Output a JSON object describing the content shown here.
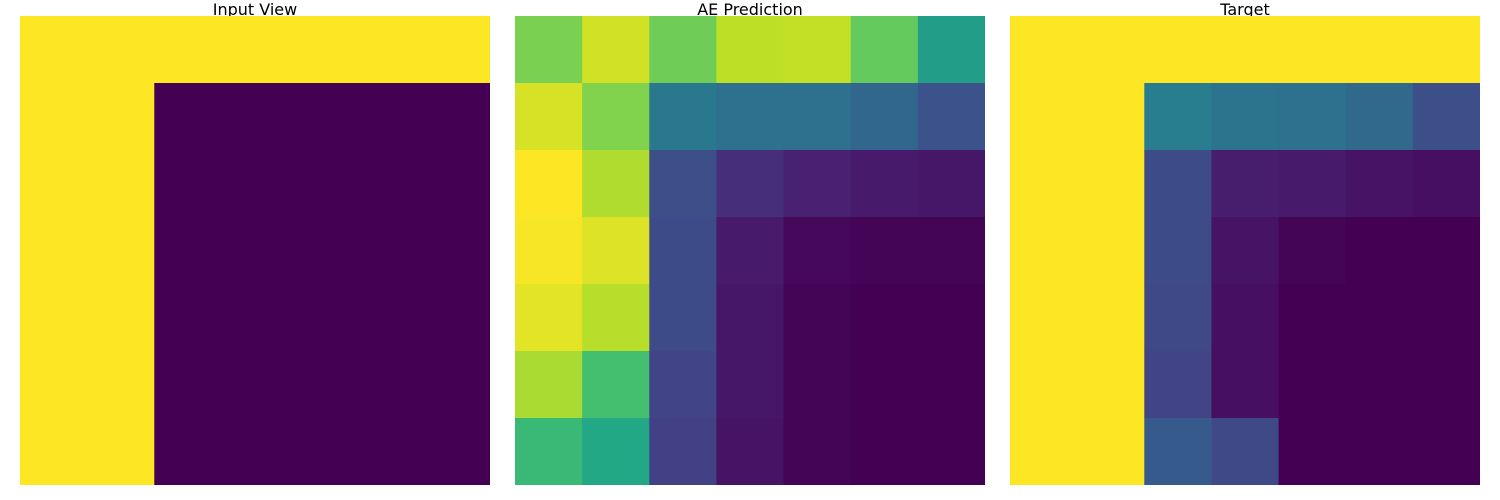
{
  "chart_data": [
    {
      "type": "heatmap",
      "title": "Input View",
      "rows": 7,
      "cols": 7,
      "values": [
        [
          1,
          1,
          1,
          1,
          1,
          1,
          1
        ],
        [
          1,
          1,
          0,
          0,
          0,
          0,
          0
        ],
        [
          1,
          1,
          0,
          0,
          0,
          0,
          0
        ],
        [
          1,
          1,
          0,
          0,
          0,
          0,
          0
        ],
        [
          1,
          1,
          0,
          0,
          0,
          0,
          0
        ],
        [
          1,
          1,
          0,
          0,
          0,
          0,
          0
        ],
        [
          1,
          1,
          0,
          0,
          0,
          0,
          0
        ]
      ],
      "colormap": "viridis",
      "vmin": 0,
      "vmax": 1
    },
    {
      "type": "heatmap",
      "title": "AE Prediction",
      "rows": 7,
      "cols": 7,
      "values": [
        [
          0.8,
          0.93,
          0.78,
          0.9,
          0.91,
          0.76,
          0.55
        ],
        [
          0.94,
          0.81,
          0.4,
          0.37,
          0.37,
          0.33,
          0.25
        ],
        [
          1.0,
          0.88,
          0.24,
          0.13,
          0.09,
          0.07,
          0.06
        ],
        [
          0.99,
          0.95,
          0.23,
          0.07,
          0.02,
          0.01,
          0.01
        ],
        [
          0.96,
          0.89,
          0.23,
          0.06,
          0.01,
          0.0,
          0.0
        ],
        [
          0.87,
          0.7,
          0.2,
          0.06,
          0.01,
          0.0,
          0.0
        ],
        [
          0.67,
          0.6,
          0.19,
          0.05,
          0.01,
          0.0,
          0.0
        ]
      ],
      "colormap": "viridis",
      "vmin": 0,
      "vmax": 1
    },
    {
      "type": "heatmap",
      "title": "Target",
      "rows": 7,
      "cols": 7,
      "values": [
        [
          1,
          1,
          1,
          1,
          1,
          1,
          1
        ],
        [
          1,
          1,
          0.42,
          0.38,
          0.37,
          0.34,
          0.24
        ],
        [
          1,
          1,
          0.23,
          0.08,
          0.07,
          0.05,
          0.04
        ],
        [
          1,
          1,
          0.23,
          0.05,
          0.01,
          0.0,
          0.0
        ],
        [
          1,
          1,
          0.22,
          0.04,
          0.0,
          0.0,
          0.0
        ],
        [
          1,
          1,
          0.2,
          0.04,
          0.0,
          0.0,
          0.0
        ],
        [
          1,
          1,
          0.28,
          0.22,
          0.0,
          0.0,
          0.0
        ]
      ],
      "colormap": "viridis",
      "vmin": 0,
      "vmax": 1
    }
  ]
}
